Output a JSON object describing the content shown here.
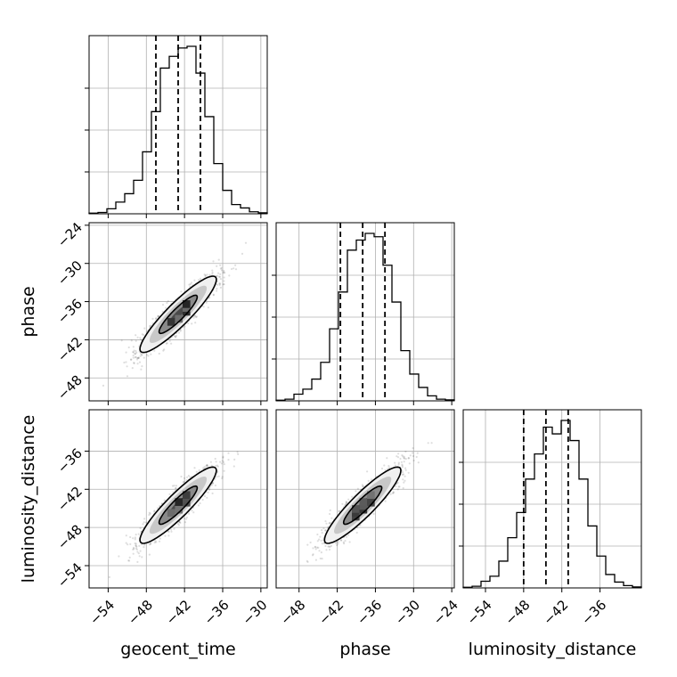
{
  "chart_data": {
    "type": "corner",
    "parameters": [
      "geocent_time",
      "phase",
      "luminosity_distance"
    ],
    "axis_labels": {
      "x": [
        "geocent_time",
        "phase",
        "luminosity_distance"
      ],
      "y": [
        "",
        "phase",
        "luminosity_distance"
      ]
    },
    "ranges": {
      "geocent_time": [
        -57.0,
        -29.0
      ],
      "phase": [
        -51.6,
        -23.6
      ],
      "luminosity_distance": [
        -57.5,
        -29.5
      ]
    },
    "ticks": {
      "geocent_time": [
        -54,
        -48,
        -42,
        -36,
        -30
      ],
      "phase": [
        -48,
        -42,
        -36,
        -30,
        -24
      ],
      "luminosity_distance": [
        -54,
        -48,
        -42,
        -36
      ]
    },
    "tick_labels": {
      "geocent_time": [
        "−54",
        "−48",
        "−42",
        "−36",
        "−30"
      ],
      "phase": [
        "−48",
        "−42",
        "−36",
        "−30",
        "−24"
      ],
      "luminosity_distance": [
        "−54",
        "−48",
        "−42",
        "−36"
      ]
    },
    "quantiles": {
      "geocent_time": [
        -46.5,
        -43.0,
        -39.5
      ],
      "phase": [
        -41.5,
        -38.0,
        -34.5
      ],
      "luminosity_distance": [
        -48.0,
        -44.5,
        -41.0
      ]
    },
    "histograms": {
      "geocent_time": [
        0.004,
        0.008,
        0.03,
        0.07,
        0.12,
        0.2,
        0.37,
        0.61,
        0.87,
        0.94,
        0.99,
        1.0,
        0.84,
        0.58,
        0.3,
        0.14,
        0.055,
        0.035,
        0.012,
        0.006
      ],
      "phase": [
        0.004,
        0.01,
        0.04,
        0.07,
        0.13,
        0.23,
        0.43,
        0.65,
        0.9,
        0.96,
        1.0,
        0.98,
        0.81,
        0.59,
        0.3,
        0.16,
        0.08,
        0.03,
        0.01,
        0.006
      ],
      "luminosity_distance": [
        0.004,
        0.01,
        0.04,
        0.07,
        0.16,
        0.3,
        0.45,
        0.65,
        0.8,
        0.96,
        0.92,
        1.0,
        0.88,
        0.65,
        0.37,
        0.19,
        0.08,
        0.035,
        0.014,
        0.006
      ]
    },
    "joint": [
      {
        "x": "geocent_time",
        "y": "phase",
        "mean": [
          -43.0,
          -38.0
        ],
        "sd": [
          3.0,
          3.0
        ],
        "rho": 0.91
      },
      {
        "x": "geocent_time",
        "y": "luminosity_distance",
        "mean": [
          -43.0,
          -44.5
        ],
        "sd": [
          3.0,
          3.0
        ],
        "rho": 0.91
      },
      {
        "x": "phase",
        "y": "luminosity_distance",
        "mean": [
          -38.0,
          -44.5
        ],
        "sd": [
          3.0,
          3.0
        ],
        "rho": 0.91
      }
    ],
    "contour_levels_sigma": [
      0.5,
      1.0,
      1.5,
      2.0
    ],
    "grid": true
  }
}
